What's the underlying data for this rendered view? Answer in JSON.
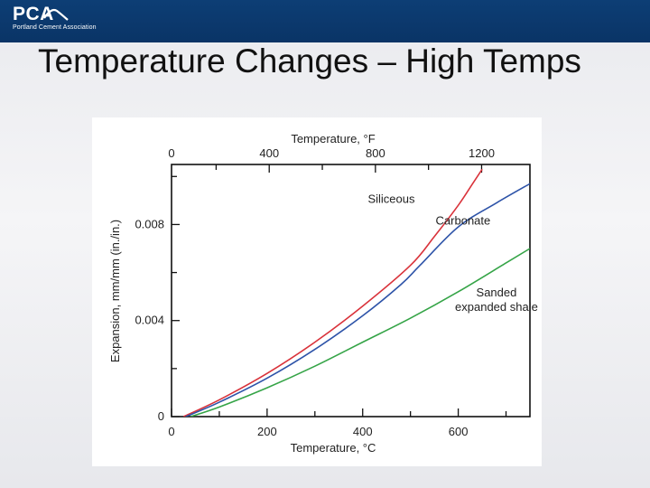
{
  "header": {
    "logo_text": "PCA",
    "logo_subtitle": "Portland Cement Association"
  },
  "slide": {
    "title": "Temperature Changes – High Temps"
  },
  "chart_data": {
    "type": "line",
    "title": "",
    "xlabel": "Temperature, °C",
    "x2label": "Temperature, °F",
    "ylabel": "Expansion, mm/mm (in./in.)",
    "xlim": [
      0,
      750
    ],
    "ylim": [
      0,
      0.0105
    ],
    "x_ticks": [
      0,
      200,
      400,
      600
    ],
    "x2_ticks": [
      0,
      400,
      800,
      1200
    ],
    "y_ticks": [
      0,
      0.004,
      0.008
    ],
    "y_tick_labels": [
      "0",
      "0.004",
      "0.008"
    ],
    "grid": false,
    "series": [
      {
        "name": "Siliceous",
        "label_lines": [
          "Siliceous"
        ],
        "color": "#d9323a",
        "x": [
          25,
          100,
          200,
          300,
          400,
          500,
          550,
          600,
          630,
          650
        ],
        "y": [
          0,
          0.0007,
          0.0018,
          0.0031,
          0.0046,
          0.0063,
          0.0075,
          0.0088,
          0.0097,
          0.0103
        ]
      },
      {
        "name": "Carbonate",
        "label_lines": [
          "Carbonate"
        ],
        "color": "#2d53a8",
        "x": [
          30,
          100,
          200,
          300,
          400,
          480,
          520,
          600,
          680,
          750
        ],
        "y": [
          0,
          0.0006,
          0.0016,
          0.0028,
          0.0042,
          0.0055,
          0.0063,
          0.0079,
          0.0089,
          0.0097
        ]
      },
      {
        "name": "Sanded expanded shale",
        "label_lines": [
          "Sanded",
          "expanded shale"
        ],
        "color": "#35a447",
        "x": [
          40,
          100,
          200,
          300,
          400,
          500,
          600,
          700,
          750
        ],
        "y": [
          0,
          0.0004,
          0.0012,
          0.0021,
          0.0031,
          0.0041,
          0.0052,
          0.0064,
          0.007
        ]
      }
    ]
  }
}
